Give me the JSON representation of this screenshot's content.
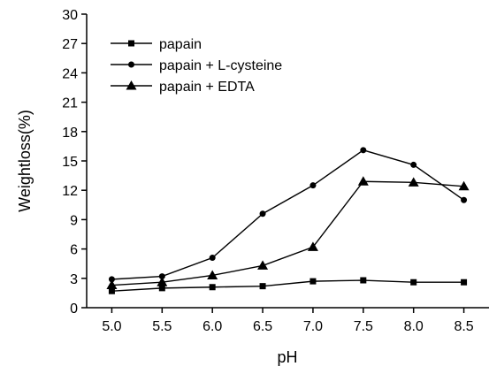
{
  "chart_data": {
    "type": "line",
    "x": [
      5.0,
      5.5,
      6.0,
      6.5,
      7.0,
      7.5,
      8.0,
      8.5
    ],
    "x_tick_labels": [
      "5.0",
      "5.5",
      "6.0",
      "6.5",
      "7.0",
      "7.5",
      "8.0",
      "8.5"
    ],
    "xlabel": "pH",
    "ylabel": "Weightloss(%)",
    "ylim": [
      0,
      30
    ],
    "y_ticks": [
      0,
      3,
      6,
      9,
      12,
      15,
      18,
      21,
      24,
      27,
      30
    ],
    "legend_position": "top-left",
    "grid": false,
    "series": [
      {
        "name": "papain",
        "marker": "square",
        "values": [
          1.7,
          2.0,
          2.1,
          2.2,
          2.7,
          2.8,
          2.6,
          2.6
        ]
      },
      {
        "name": "papain + L-cysteine",
        "marker": "circle",
        "values": [
          2.9,
          3.2,
          5.1,
          9.6,
          12.5,
          16.1,
          14.6,
          11.0
        ]
      },
      {
        "name": "papain + EDTA",
        "marker": "triangle",
        "values": [
          2.3,
          2.6,
          3.3,
          4.3,
          6.2,
          12.9,
          12.8,
          12.4
        ]
      }
    ]
  }
}
